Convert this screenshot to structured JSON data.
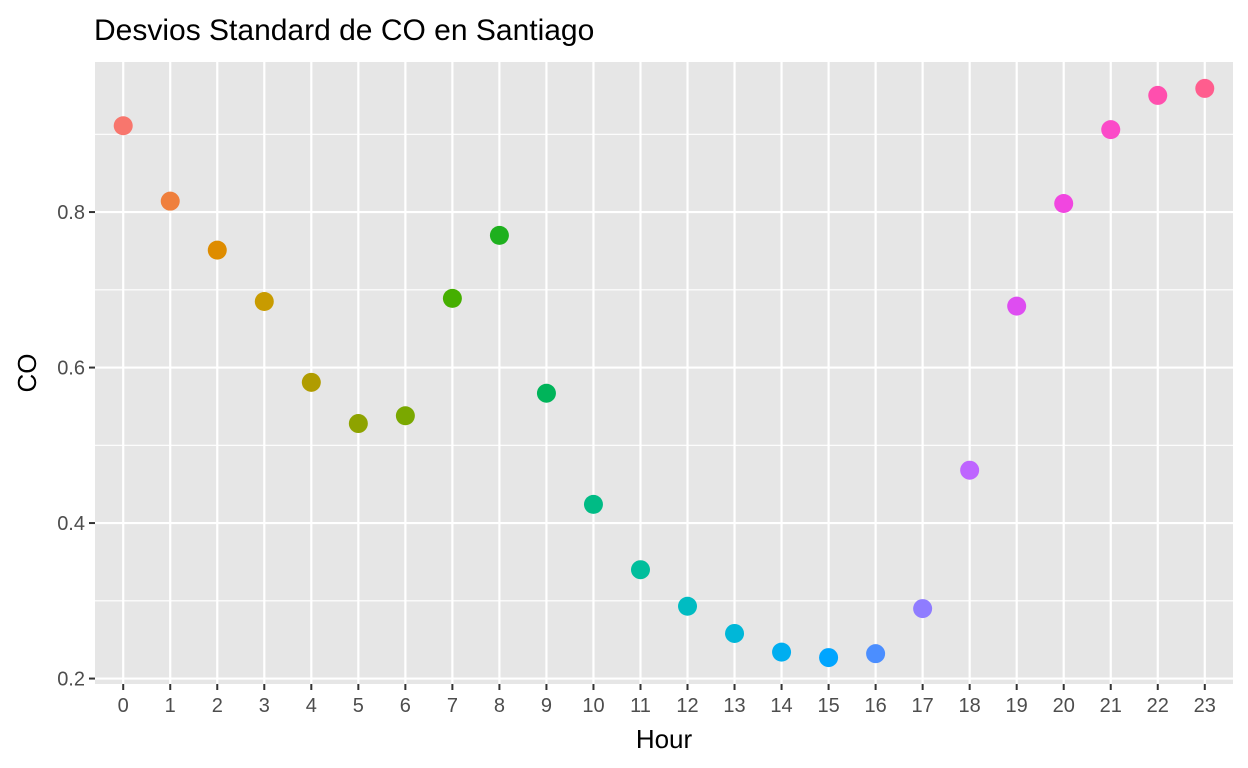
{
  "chart_data": {
    "type": "scatter",
    "title": "Desvios Standard de CO en Santiago",
    "xlabel": "Hour",
    "ylabel": "CO",
    "x": [
      0,
      1,
      2,
      3,
      4,
      5,
      6,
      7,
      8,
      9,
      10,
      11,
      12,
      13,
      14,
      15,
      16,
      17,
      18,
      19,
      20,
      21,
      22,
      23
    ],
    "x_tick_labels": [
      "0",
      "1",
      "2",
      "3",
      "4",
      "5",
      "6",
      "7",
      "8",
      "9",
      "10",
      "11",
      "12",
      "13",
      "14",
      "15",
      "16",
      "17",
      "18",
      "19",
      "20",
      "21",
      "22",
      "23"
    ],
    "y": [
      0.911,
      0.814,
      0.751,
      0.685,
      0.581,
      0.528,
      0.538,
      0.689,
      0.77,
      0.567,
      0.424,
      0.34,
      0.293,
      0.258,
      0.234,
      0.227,
      0.232,
      0.29,
      0.468,
      0.679,
      0.811,
      0.906,
      0.95,
      0.959
    ],
    "y_ticks": [
      0.2,
      0.4,
      0.6,
      0.8
    ],
    "y_tick_labels": [
      "0.2",
      "0.4",
      "0.6",
      "0.8"
    ],
    "xlim": [
      -0.6,
      23.6
    ],
    "ylim": [
      0.193,
      0.993
    ],
    "grid": true,
    "legend": "none",
    "point_colors": [
      "#F8766D",
      "#EF7F3C",
      "#DE8C00",
      "#C89B00",
      "#B09C00",
      "#8EA300",
      "#7AA800",
      "#45AF00",
      "#1EB01E",
      "#00B45A",
      "#00BB85",
      "#00BE9C",
      "#00BCC2",
      "#00B7D8",
      "#00AEF0",
      "#00A5FF",
      "#4B8EFF",
      "#8F7CFF",
      "#BE65FF",
      "#DE4DF1",
      "#F146E0",
      "#FB4AC8",
      "#FF4FAE",
      "#FF5D8E"
    ],
    "panel_background": "#E6E6E6"
  }
}
